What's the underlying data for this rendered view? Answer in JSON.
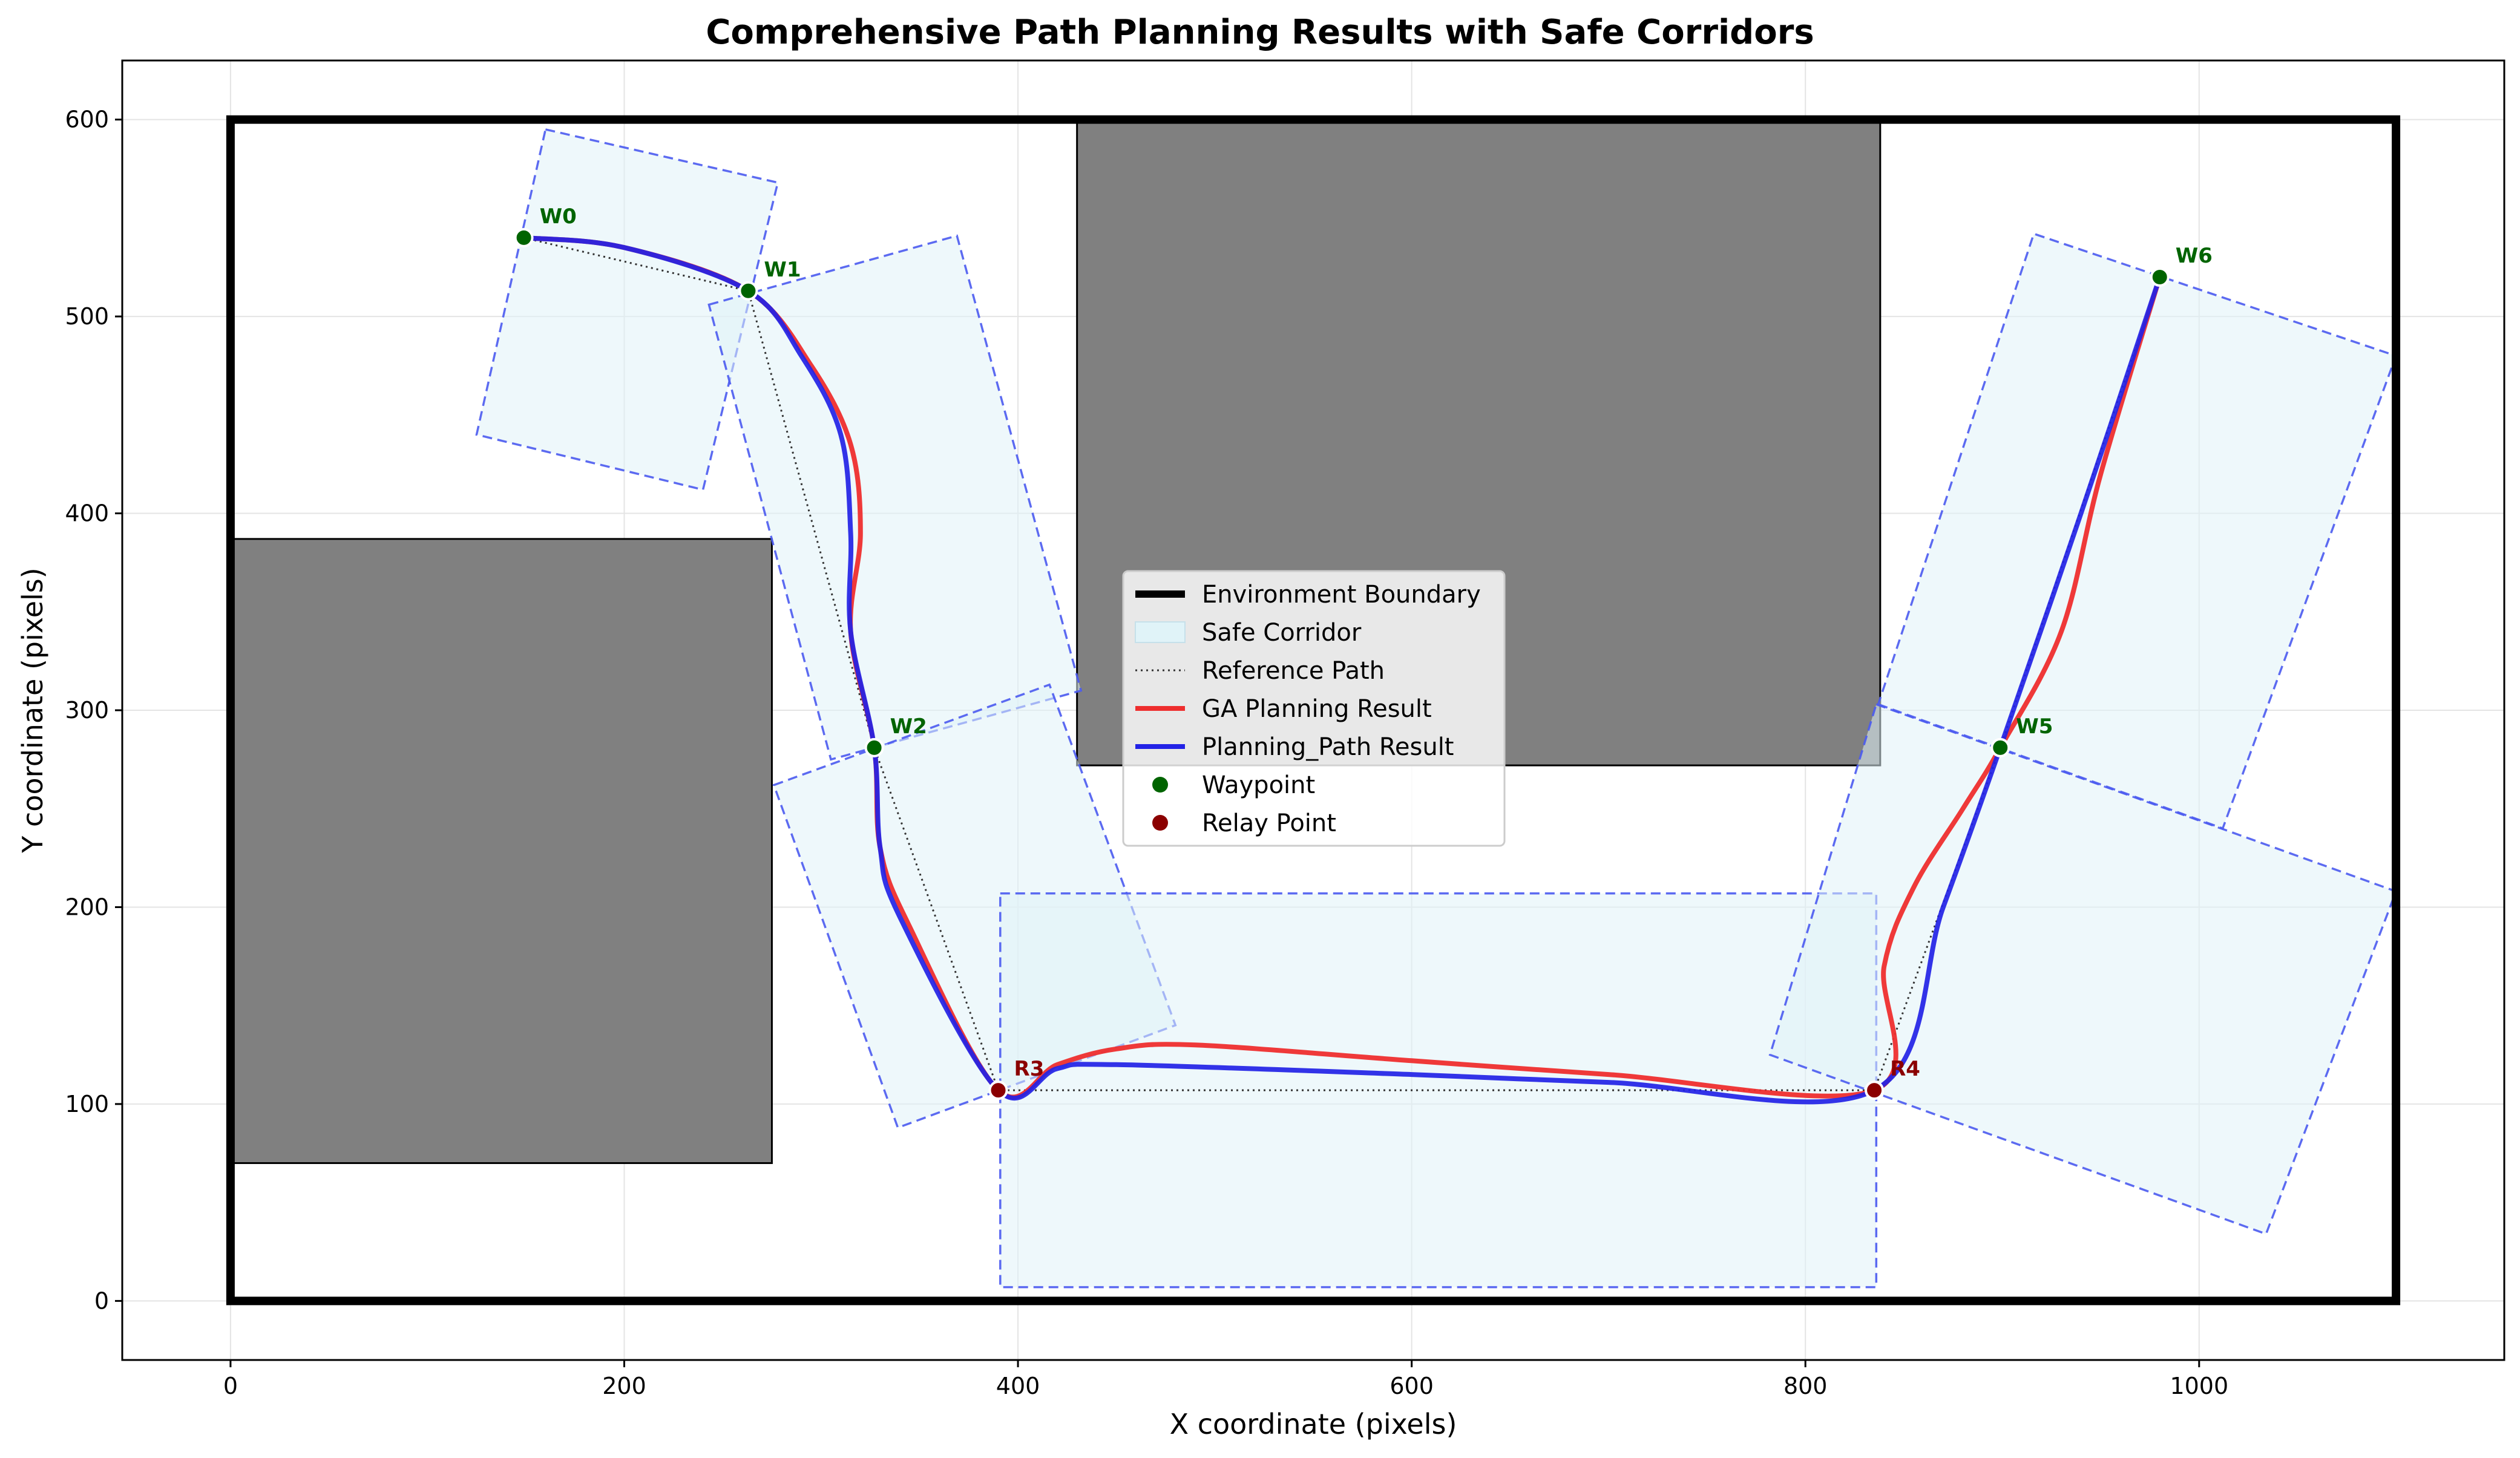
{
  "chart_data": {
    "type": "line",
    "title": "Comprehensive Path Planning Results with Safe Corridors",
    "xlabel": "X coordinate (pixels)",
    "ylabel": "Y coordinate (pixels)",
    "xlim": [
      -55,
      1155
    ],
    "ylim": [
      -30,
      630
    ],
    "xticks": [
      0,
      200,
      400,
      600,
      800,
      1000
    ],
    "yticks": [
      0,
      100,
      200,
      300,
      400,
      500,
      600
    ],
    "grid": true,
    "legend_position": "center",
    "legend": [
      {
        "label": "Environment Boundary",
        "kind": "thick-line"
      },
      {
        "label": "Safe Corridor",
        "kind": "patch"
      },
      {
        "label": "Reference Path",
        "kind": "dotted-line"
      },
      {
        "label": "GA Planning Result",
        "kind": "red-line"
      },
      {
        "label": "Planning_Path Result",
        "kind": "blue-line"
      },
      {
        "label": "Waypoint",
        "kind": "green-marker"
      },
      {
        "label": "Relay Point",
        "kind": "darkred-marker"
      }
    ],
    "colors": {
      "boundary": "#000000",
      "obstacle": "#808080",
      "corridor_fill": "#e0f3f8",
      "corridor_edge": "#4a5af0",
      "reference": "#333333",
      "ga": "#ee2e2e",
      "planning": "#2222e6",
      "waypoint": "#006400",
      "relay": "#8b0000"
    },
    "boundary": [
      [
        0,
        0
      ],
      [
        1100,
        0
      ],
      [
        1100,
        600
      ],
      [
        0,
        600
      ]
    ],
    "obstacles": [
      {
        "x0": 0,
        "y0": 70,
        "x1": 275,
        "y1": 387
      },
      {
        "x0": 430,
        "y0": 272,
        "x1": 838,
        "y1": 600
      }
    ],
    "corridors": [
      [
        [
          160,
          595
        ],
        [
          278,
          568
        ],
        [
          240,
          412
        ],
        [
          125,
          440
        ]
      ],
      [
        [
          243,
          506
        ],
        [
          369,
          541
        ],
        [
          432,
          310
        ],
        [
          305,
          275
        ]
      ],
      [
        [
          276,
          262
        ],
        [
          416,
          313
        ],
        [
          480,
          140
        ],
        [
          339,
          88
        ]
      ],
      [
        [
          391,
          207
        ],
        [
          836,
          207
        ],
        [
          836,
          7
        ],
        [
          391,
          7
        ]
      ],
      [
        [
          836,
          303
        ],
        [
          1100,
          208
        ],
        [
          1034,
          34
        ],
        [
          782,
          125
        ]
      ],
      [
        [
          837,
          303
        ],
        [
          1012,
          240
        ],
        [
          1100,
          480
        ],
        [
          916,
          542
        ]
      ]
    ],
    "reference_path": [
      [
        149,
        540
      ],
      [
        263,
        513
      ],
      [
        327,
        281
      ],
      [
        390,
        107
      ],
      [
        835,
        107
      ],
      [
        899,
        281
      ],
      [
        980,
        520
      ]
    ],
    "ga_path": [
      [
        149,
        540
      ],
      [
        200,
        535
      ],
      [
        263,
        513
      ],
      [
        295,
        475
      ],
      [
        315,
        435
      ],
      [
        320,
        390
      ],
      [
        315,
        340
      ],
      [
        327,
        281
      ],
      [
        330,
        230
      ],
      [
        345,
        190
      ],
      [
        390,
        107
      ],
      [
        420,
        120
      ],
      [
        450,
        128
      ],
      [
        490,
        130
      ],
      [
        600,
        122
      ],
      [
        700,
        115
      ],
      [
        835,
        107
      ],
      [
        840,
        170
      ],
      [
        855,
        210
      ],
      [
        880,
        250
      ],
      [
        899,
        281
      ],
      [
        930,
        340
      ],
      [
        950,
        420
      ],
      [
        980,
        520
      ]
    ],
    "planning_path": [
      [
        149,
        540
      ],
      [
        200,
        535
      ],
      [
        263,
        513
      ],
      [
        290,
        480
      ],
      [
        310,
        440
      ],
      [
        315,
        390
      ],
      [
        315,
        340
      ],
      [
        327,
        281
      ],
      [
        330,
        230
      ],
      [
        340,
        195
      ],
      [
        390,
        107
      ],
      [
        420,
        118
      ],
      [
        450,
        120
      ],
      [
        600,
        115
      ],
      [
        700,
        111
      ],
      [
        835,
        107
      ],
      [
        870,
        200
      ],
      [
        899,
        281
      ],
      [
        940,
        400
      ],
      [
        980,
        520
      ]
    ],
    "waypoints": [
      {
        "label": "W0",
        "x": 149,
        "y": 540
      },
      {
        "label": "W1",
        "x": 263,
        "y": 513
      },
      {
        "label": "W2",
        "x": 327,
        "y": 281
      },
      {
        "label": "W5",
        "x": 899,
        "y": 281
      },
      {
        "label": "W6",
        "x": 980,
        "y": 520
      }
    ],
    "relay_points": [
      {
        "label": "R3",
        "x": 390,
        "y": 107
      },
      {
        "label": "R4",
        "x": 835,
        "y": 107
      }
    ]
  }
}
